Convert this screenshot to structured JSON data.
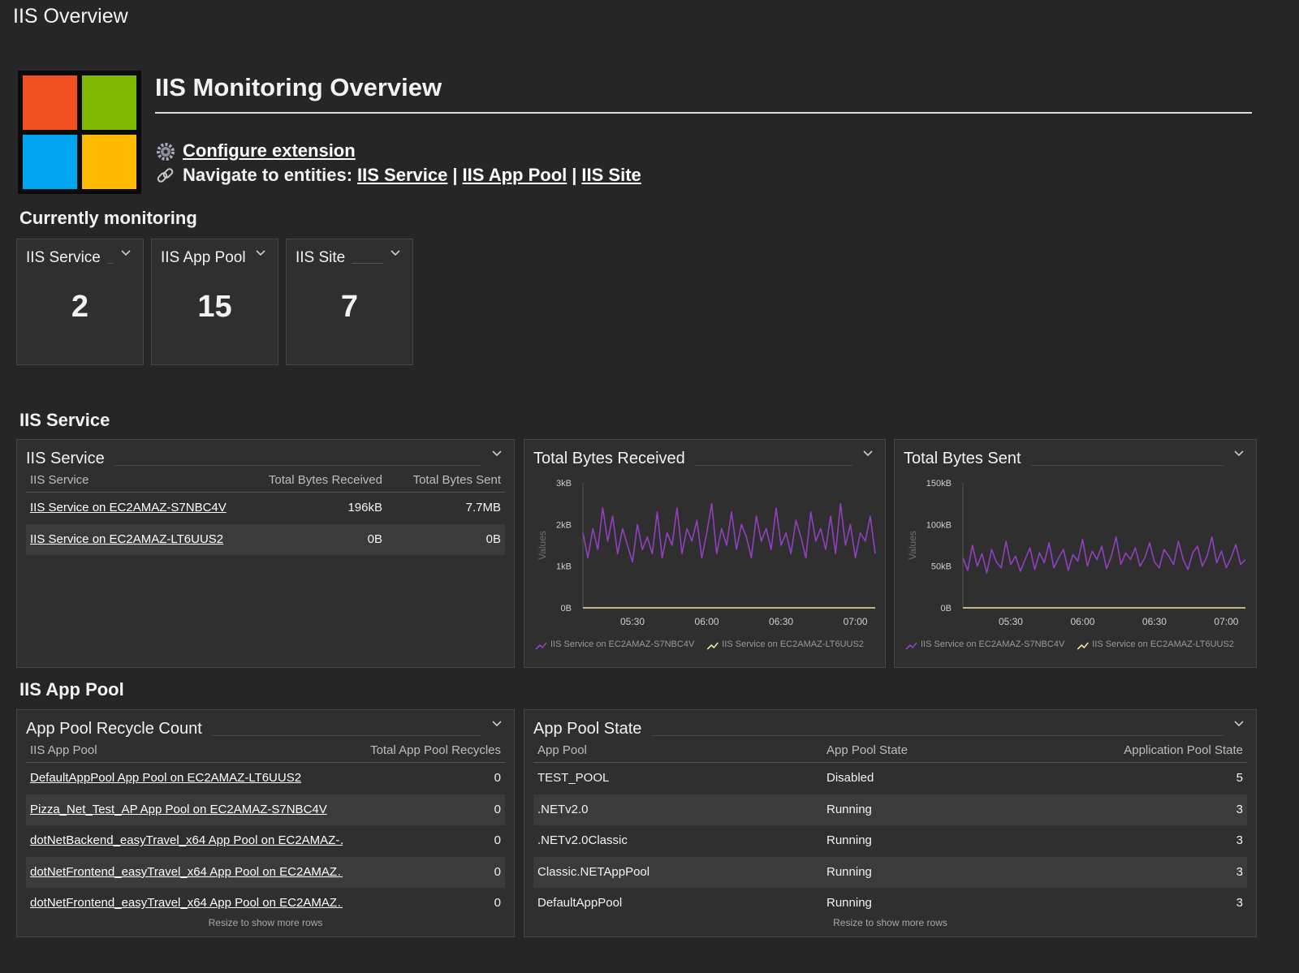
{
  "page_title": "IIS Overview",
  "header": {
    "title": "IIS Monitoring Overview",
    "configure_link": "Configure extension",
    "navigate_label": "Navigate to entities:",
    "nav_links": [
      "IIS Service",
      "IIS App Pool",
      "IIS Site"
    ],
    "nav_separator": "|"
  },
  "monitoring": {
    "title": "Currently monitoring",
    "tiles": [
      {
        "label": "IIS Service",
        "count": 2
      },
      {
        "label": "IIS App Pool",
        "count": 15
      },
      {
        "label": "IIS Site",
        "count": 7
      }
    ]
  },
  "service_section_title": "IIS Service",
  "app_pool_section_title": "IIS App Pool",
  "service_table": {
    "title": "IIS Service",
    "columns": [
      "IIS Service",
      "Total Bytes Received",
      "Total Bytes Sent"
    ],
    "rows": [
      [
        "IIS Service on EC2AMAZ-S7NBC4V",
        "196kB",
        "7.7MB"
      ],
      [
        "IIS Service on EC2AMAZ-LT6UUS2",
        "0B",
        "0B"
      ]
    ]
  },
  "recycle_table": {
    "title": "App Pool Recycle Count",
    "columns": [
      "IIS App Pool",
      "Total App Pool Recycles"
    ],
    "rows": [
      [
        "DefaultAppPool App Pool on EC2AMAZ-LT6UUS2",
        0
      ],
      [
        "Pizza_Net_Test_AP App Pool on EC2AMAZ-S7NBC4V",
        0
      ],
      [
        "dotNetBackend_easyTravel_x64 App Pool on EC2AMAZ-…",
        0
      ],
      [
        "dotNetFrontend_easyTravel_x64 App Pool on EC2AMAZ…",
        0
      ],
      [
        "dotNetFrontend_easyTravel_x64 App Pool on EC2AMAZ…",
        0
      ]
    ],
    "footer": "Resize to show more rows"
  },
  "state_table": {
    "title": "App Pool State",
    "columns": [
      "App Pool",
      "App Pool State",
      "Application Pool State"
    ],
    "rows": [
      [
        "TEST_POOL",
        "Disabled",
        5
      ],
      [
        ".NETv2.0",
        "Running",
        3
      ],
      [
        ".NETv2.0Classic",
        "Running",
        3
      ],
      [
        "Classic.NETAppPool",
        "Running",
        3
      ],
      [
        "DefaultAppPool",
        "Running",
        3
      ]
    ],
    "footer": "Resize to show more rows"
  },
  "chart_data": [
    {
      "type": "line",
      "title": "Total Bytes Received",
      "y_label": "Values",
      "x": [
        "05:10",
        "05:12",
        "05:14",
        "05:16",
        "05:18",
        "05:20",
        "05:22",
        "05:24",
        "05:26",
        "05:28",
        "05:30",
        "05:32",
        "05:34",
        "05:36",
        "05:38",
        "05:40",
        "05:42",
        "05:44",
        "05:46",
        "05:48",
        "05:50",
        "05:52",
        "05:54",
        "05:56",
        "05:58",
        "06:00",
        "06:02",
        "06:04",
        "06:06",
        "06:08",
        "06:10",
        "06:12",
        "06:14",
        "06:16",
        "06:18",
        "06:20",
        "06:22",
        "06:24",
        "06:26",
        "06:28",
        "06:30",
        "06:32",
        "06:34",
        "06:36",
        "06:38",
        "06:40",
        "06:42",
        "06:44",
        "06:46",
        "06:48",
        "06:50",
        "06:52",
        "06:54",
        "06:56",
        "06:58",
        "07:00",
        "07:02",
        "07:04",
        "07:06",
        "07:08"
      ],
      "xlim": [
        "05:10",
        "07:08"
      ],
      "xticks": [
        "05:30",
        "06:00",
        "06:30",
        "07:00"
      ],
      "ylim": [
        0,
        3000
      ],
      "yticks": [
        {
          "value": 0,
          "label": "0B"
        },
        {
          "value": 1000,
          "label": "1kB"
        },
        {
          "value": 2000,
          "label": "2kB"
        },
        {
          "value": 3000,
          "label": "3kB"
        }
      ],
      "series": [
        {
          "name": "IIS Service on EC2AMAZ-S7NBC4V",
          "color": "#9240bf",
          "values": [
            1800,
            1200,
            1900,
            1400,
            2400,
            1600,
            2200,
            1300,
            1900,
            1500,
            1100,
            2000,
            1400,
            1700,
            1300,
            2300,
            1200,
            1800,
            1500,
            2400,
            1300,
            1900,
            1600,
            2100,
            1200,
            1800,
            2500,
            1300,
            1900,
            1500,
            2300,
            1400,
            2000,
            1700,
            1200,
            2200,
            1600,
            1900,
            1400,
            2400,
            1500,
            1800,
            1300,
            2100,
            1700,
            1200,
            2300,
            1600,
            1900,
            1400,
            2200,
            1300,
            2500,
            1500,
            2000,
            1200,
            1800,
            1600,
            2200,
            1300
          ]
        },
        {
          "name": "IIS Service on EC2AMAZ-LT6UUS2",
          "color": "#ede59a",
          "values": [
            0,
            0,
            0,
            0,
            0,
            0,
            0,
            0,
            0,
            0,
            0,
            0,
            0,
            0,
            0,
            0,
            0,
            0,
            0,
            0,
            0,
            0,
            0,
            0,
            0,
            0,
            0,
            0,
            0,
            0,
            0,
            0,
            0,
            0,
            0,
            0,
            0,
            0,
            0,
            0,
            0,
            0,
            0,
            0,
            0,
            0,
            0,
            0,
            0,
            0,
            0,
            0,
            0,
            0,
            0,
            0,
            0,
            0,
            0,
            0
          ]
        }
      ]
    },
    {
      "type": "line",
      "title": "Total Bytes Sent",
      "y_label": "Values",
      "x": [
        "05:10",
        "05:12",
        "05:14",
        "05:16",
        "05:18",
        "05:20",
        "05:22",
        "05:24",
        "05:26",
        "05:28",
        "05:30",
        "05:32",
        "05:34",
        "05:36",
        "05:38",
        "05:40",
        "05:42",
        "05:44",
        "05:46",
        "05:48",
        "05:50",
        "05:52",
        "05:54",
        "05:56",
        "05:58",
        "06:00",
        "06:02",
        "06:04",
        "06:06",
        "06:08",
        "06:10",
        "06:12",
        "06:14",
        "06:16",
        "06:18",
        "06:20",
        "06:22",
        "06:24",
        "06:26",
        "06:28",
        "06:30",
        "06:32",
        "06:34",
        "06:36",
        "06:38",
        "06:40",
        "06:42",
        "06:44",
        "06:46",
        "06:48",
        "06:50",
        "06:52",
        "06:54",
        "06:56",
        "06:58",
        "07:00",
        "07:02",
        "07:04",
        "07:06",
        "07:08"
      ],
      "xlim": [
        "05:10",
        "07:08"
      ],
      "xticks": [
        "05:30",
        "06:00",
        "06:30",
        "07:00"
      ],
      "ylim": [
        0,
        150000
      ],
      "yticks": [
        {
          "value": 0,
          "label": "0B"
        },
        {
          "value": 50000,
          "label": "50kB"
        },
        {
          "value": 100000,
          "label": "100kB"
        },
        {
          "value": 150000,
          "label": "150kB"
        }
      ],
      "series": [
        {
          "name": "IIS Service on EC2AMAZ-S7NBC4V",
          "color": "#9240bf",
          "values": [
            60000,
            45000,
            75000,
            50000,
            65000,
            42000,
            70000,
            55000,
            48000,
            80000,
            52000,
            62000,
            44000,
            58000,
            72000,
            46000,
            66000,
            54000,
            78000,
            48000,
            60000,
            70000,
            45000,
            64000,
            56000,
            82000,
            50000,
            68000,
            58000,
            74000,
            47000,
            62000,
            85000,
            52000,
            66000,
            58000,
            72000,
            50000,
            60000,
            78000,
            55000,
            48000,
            70000,
            62000,
            52000,
            80000,
            58000,
            46000,
            66000,
            74000,
            50000,
            62000,
            85000,
            54000,
            68000,
            48000,
            60000,
            76000,
            52000,
            58000
          ]
        },
        {
          "name": "IIS Service on EC2AMAZ-LT6UUS2",
          "color": "#ede59a",
          "values": [
            0,
            0,
            0,
            0,
            0,
            0,
            0,
            0,
            0,
            0,
            0,
            0,
            0,
            0,
            0,
            0,
            0,
            0,
            0,
            0,
            0,
            0,
            0,
            0,
            0,
            0,
            0,
            0,
            0,
            0,
            0,
            0,
            0,
            0,
            0,
            0,
            0,
            0,
            0,
            0,
            0,
            0,
            0,
            0,
            0,
            0,
            0,
            0,
            0,
            0,
            0,
            0,
            0,
            0,
            0,
            0,
            0,
            0,
            0,
            0
          ]
        }
      ]
    }
  ]
}
